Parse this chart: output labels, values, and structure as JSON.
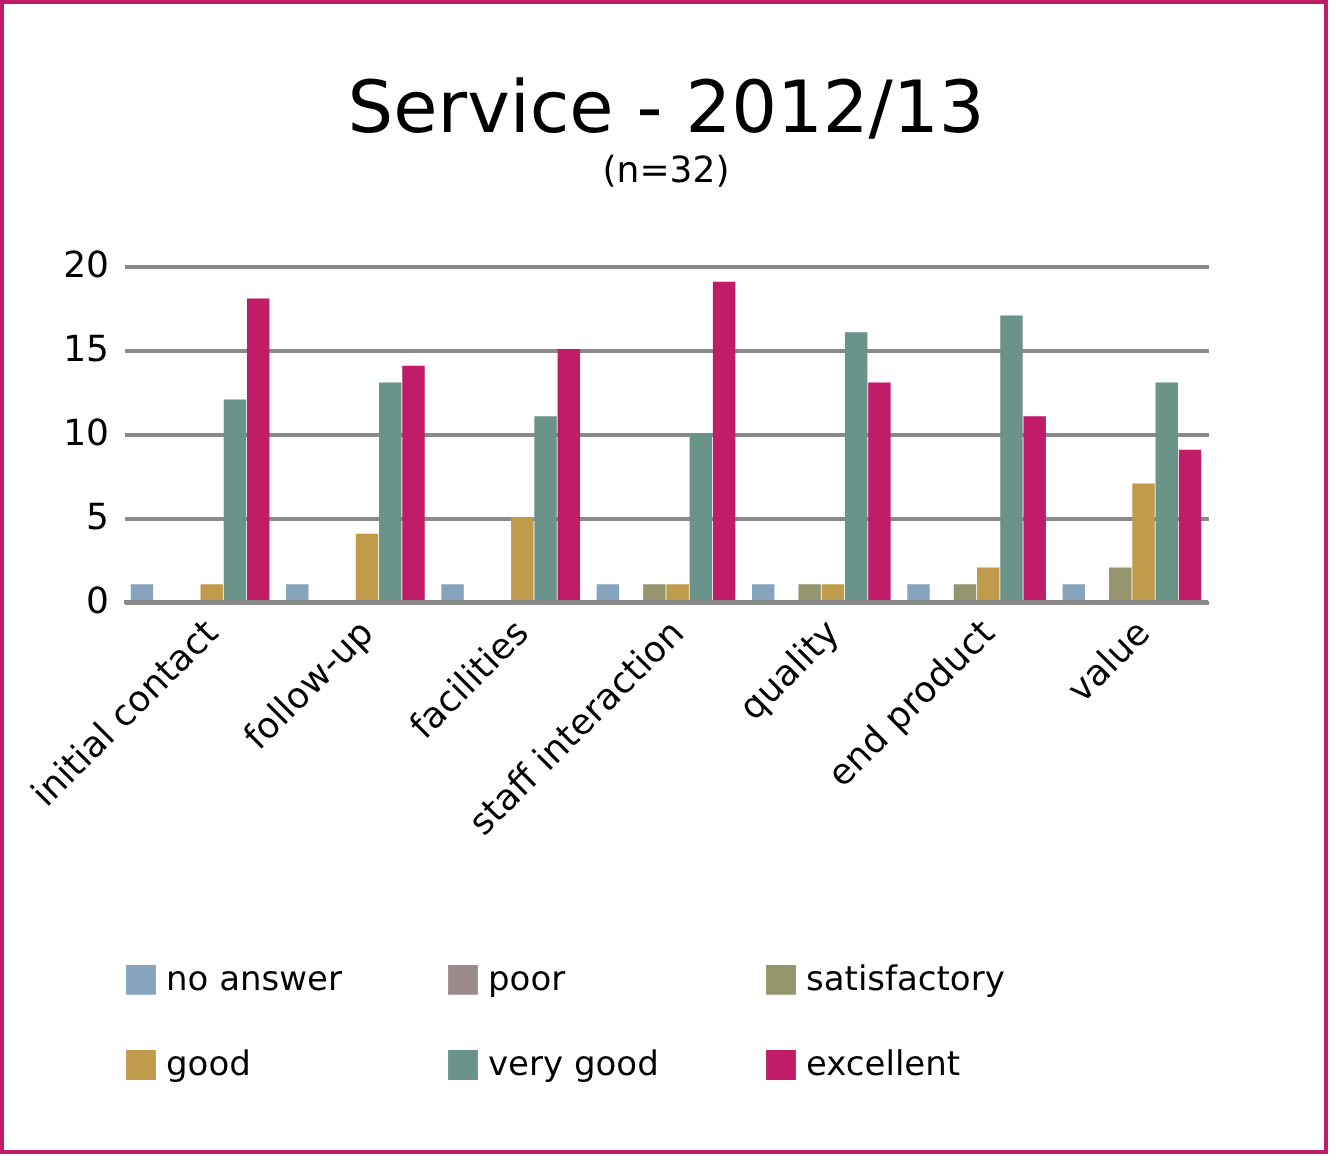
{
  "chart_data": {
    "type": "bar",
    "title": "Service - 2012/13",
    "subtitle": "(n=32)",
    "categories": [
      "initial contact",
      "follow-up",
      "facilities",
      "staff interaction",
      "quality",
      "end product",
      "value"
    ],
    "series": [
      {
        "name": "no answer",
        "color": "#86a4bd",
        "values": [
          1,
          1,
          1,
          1,
          1,
          1,
          1
        ]
      },
      {
        "name": "poor",
        "color": "#9a8c8c",
        "values": [
          0,
          0,
          0,
          0,
          0,
          0,
          0
        ]
      },
      {
        "name": "satisfactory",
        "color": "#95966e",
        "values": [
          0,
          0,
          0,
          1,
          1,
          1,
          2
        ]
      },
      {
        "name": "good",
        "color": "#c09b4c",
        "values": [
          1,
          4,
          5,
          1,
          1,
          2,
          7
        ]
      },
      {
        "name": "very good",
        "color": "#6a9389",
        "values": [
          12,
          13,
          11,
          10,
          16,
          17,
          13
        ]
      },
      {
        "name": "excellent",
        "color": "#c01c68",
        "values": [
          18,
          14,
          15,
          19,
          13,
          11,
          9
        ]
      }
    ],
    "ylim": [
      0,
      20
    ],
    "yticks": [
      0,
      5,
      10,
      15,
      20
    ],
    "grid": "y",
    "legend": "bottom"
  }
}
